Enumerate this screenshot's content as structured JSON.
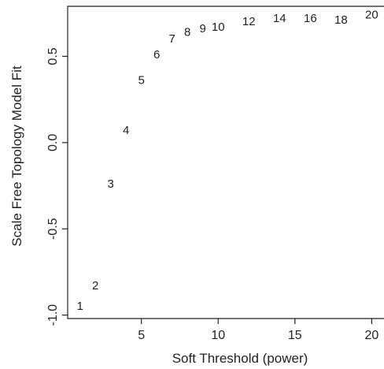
{
  "chart_data": {
    "type": "scatter",
    "marker": "text",
    "xlabel": "Soft Threshold (power)",
    "ylabel": "Scale Free Topology Model Fit",
    "xlim": [
      0.2,
      20.8
    ],
    "ylim": [
      -1.02,
      0.79
    ],
    "xticks": [
      5,
      10,
      15,
      20
    ],
    "yticks": [
      -1.0,
      -0.5,
      0.0,
      0.5
    ],
    "xtick_labels": [
      "5",
      "10",
      "15",
      "20"
    ],
    "ytick_labels": [
      "-1.0",
      "-0.5",
      "0.0",
      "0.5"
    ],
    "grid": false,
    "text_color": "#222222",
    "points": [
      {
        "label": "1",
        "x": 1,
        "y": -0.95
      },
      {
        "label": "2",
        "x": 2,
        "y": -0.83
      },
      {
        "label": "3",
        "x": 3,
        "y": -0.24
      },
      {
        "label": "4",
        "x": 4,
        "y": 0.07
      },
      {
        "label": "5",
        "x": 5,
        "y": 0.36
      },
      {
        "label": "6",
        "x": 6,
        "y": 0.51
      },
      {
        "label": "7",
        "x": 7,
        "y": 0.6
      },
      {
        "label": "8",
        "x": 8,
        "y": 0.64
      },
      {
        "label": "9",
        "x": 9,
        "y": 0.66
      },
      {
        "label": "10",
        "x": 10,
        "y": 0.67
      },
      {
        "label": "12",
        "x": 12,
        "y": 0.7
      },
      {
        "label": "14",
        "x": 14,
        "y": 0.72
      },
      {
        "label": "16",
        "x": 16,
        "y": 0.72
      },
      {
        "label": "18",
        "x": 18,
        "y": 0.71
      },
      {
        "label": "20",
        "x": 20,
        "y": 0.74
      }
    ]
  }
}
